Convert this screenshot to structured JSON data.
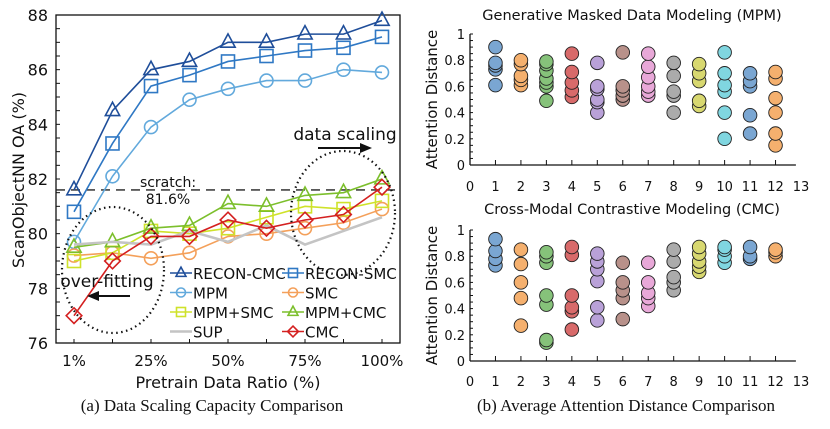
{
  "chart_data": [
    {
      "type": "line",
      "caption": "(a) Data Scaling Capacity Comparison",
      "xlabel": "Pretrain Data Ratio (%)",
      "ylabel": "ScanObjectNN OA (%)",
      "x": [
        "1%",
        "12.5%",
        "25%",
        "37.5%",
        "50%",
        "62.5%",
        "75%",
        "87.5%",
        "100%"
      ],
      "xtick_labels": [
        "1%",
        "25%",
        "50%",
        "75%",
        "100%"
      ],
      "ylim": [
        76,
        88
      ],
      "yticks": [
        76,
        78,
        80,
        82,
        84,
        86,
        88
      ],
      "grid": false,
      "legend_position": "bottom-right",
      "reference_line": {
        "value": 81.6,
        "label_1": "scratch:",
        "label_2": "81.6%"
      },
      "annotations": {
        "data_scaling": "data scaling",
        "over_fitting": "over-fitting"
      },
      "series": [
        {
          "name": "RECON-CMC",
          "marker": "triangle",
          "color": "#1f4e9a",
          "values": [
            81.6,
            84.5,
            86.0,
            86.3,
            87.0,
            87.0,
            87.3,
            87.3,
            87.8
          ]
        },
        {
          "name": "RECON-SMC",
          "marker": "square",
          "color": "#2f78c4",
          "values": [
            80.8,
            83.3,
            85.4,
            85.8,
            86.3,
            86.5,
            86.7,
            86.8,
            87.2
          ]
        },
        {
          "name": "MPM",
          "marker": "circle",
          "color": "#62a9dc",
          "values": [
            79.7,
            82.1,
            83.9,
            84.9,
            85.3,
            85.6,
            85.6,
            86.0,
            85.9
          ]
        },
        {
          "name": "SMC",
          "marker": "circle",
          "color": "#f4a05a",
          "values": [
            79.2,
            79.3,
            79.1,
            79.3,
            79.9,
            80.0,
            80.2,
            80.4,
            80.9
          ]
        },
        {
          "name": "MPM+SMC",
          "marker": "square",
          "color": "#cfe22a",
          "values": [
            79.0,
            79.3,
            80.1,
            80.0,
            80.2,
            80.6,
            81.0,
            80.9,
            81.2
          ]
        },
        {
          "name": "MPM+CMC",
          "marker": "triangle",
          "color": "#7cbf2c",
          "values": [
            79.5,
            79.7,
            80.2,
            80.3,
            81.1,
            81.0,
            81.4,
            81.5,
            82.0
          ]
        },
        {
          "name": "SUP",
          "marker": "none",
          "color": "#c4c4c4",
          "values": [
            79.6,
            79.7,
            79.6,
            80.1,
            79.7,
            80.3,
            79.6,
            80.1,
            80.6
          ]
        },
        {
          "name": "CMC",
          "marker": "diamond",
          "color": "#d42020",
          "values": [
            77.0,
            79.0,
            79.9,
            79.9,
            80.5,
            80.2,
            80.5,
            80.7,
            81.7
          ]
        }
      ]
    },
    {
      "type": "scatter",
      "title": "Generative Masked Data Modeling (MPM)",
      "ylabel": "Attention Distance",
      "xlim": [
        0,
        13
      ],
      "ylim": [
        0,
        1
      ],
      "xticks": [
        0,
        1,
        2,
        3,
        4,
        5,
        6,
        7,
        8,
        9,
        10,
        11,
        12,
        13
      ],
      "yticks": [
        0,
        0.2,
        0.4,
        0.6,
        0.8,
        1
      ],
      "colors": [
        "#7aa6d2",
        "#f5b06e",
        "#86c27a",
        "#d86a6a",
        "#b9a1d8",
        "#b8918a",
        "#e8a8d8",
        "#ababab",
        "#d8d870",
        "#80d6e0",
        "#7aa6d2",
        "#f5b06e"
      ],
      "points": [
        [
          0.9,
          0.78,
          0.76,
          0.73,
          0.61
        ],
        [
          0.8,
          0.77,
          0.68,
          0.65,
          0.61
        ],
        [
          0.79,
          0.77,
          0.72,
          0.66,
          0.63,
          0.6,
          0.49
        ],
        [
          0.85,
          0.71,
          0.63,
          0.57,
          0.52
        ],
        [
          0.78,
          0.6,
          0.58,
          0.5,
          0.48,
          0.4
        ],
        [
          0.86,
          0.6,
          0.57,
          0.53,
          0.5
        ],
        [
          0.85,
          0.75,
          0.67,
          0.6,
          0.56,
          0.53
        ],
        [
          0.78,
          0.68,
          0.56,
          0.53,
          0.4
        ],
        [
          0.77,
          0.7,
          0.64,
          0.49,
          0.45
        ],
        [
          0.86,
          0.7,
          0.61,
          0.56,
          0.4,
          0.2
        ],
        [
          0.7,
          0.64,
          0.6,
          0.38,
          0.24
        ],
        [
          0.71,
          0.66,
          0.51,
          0.4,
          0.24,
          0.15
        ]
      ]
    },
    {
      "type": "scatter",
      "title": "Cross-Modal Contrastive Modeling (CMC)",
      "ylabel": "Attention Distance",
      "caption": "(b) Average Attention Distance Comparison",
      "xlim": [
        0,
        13
      ],
      "ylim": [
        0,
        1
      ],
      "xticks": [
        0,
        1,
        2,
        3,
        4,
        5,
        6,
        7,
        8,
        9,
        10,
        11,
        12,
        13
      ],
      "yticks": [
        0,
        0.2,
        0.4,
        0.6,
        0.8,
        1
      ],
      "colors": [
        "#7aa6d2",
        "#f5b06e",
        "#86c27a",
        "#d86a6a",
        "#b9a1d8",
        "#b8918a",
        "#e8a8d8",
        "#ababab",
        "#d8d870",
        "#80d6e0",
        "#7aa6d2",
        "#f5b06e"
      ],
      "points": [
        [
          0.93,
          0.84,
          0.78,
          0.73
        ],
        [
          0.85,
          0.74,
          0.6,
          0.48,
          0.27
        ],
        [
          0.83,
          0.8,
          0.75,
          0.5,
          0.43,
          0.16,
          0.14
        ],
        [
          0.87,
          0.81,
          0.5,
          0.41,
          0.38,
          0.24
        ],
        [
          0.82,
          0.76,
          0.7,
          0.61,
          0.41,
          0.31
        ],
        [
          0.75,
          0.6,
          0.54,
          0.48,
          0.32
        ],
        [
          0.75,
          0.6,
          0.52,
          0.48,
          0.42
        ],
        [
          0.85,
          0.76,
          0.64,
          0.6,
          0.54
        ],
        [
          0.87,
          0.82,
          0.76,
          0.72,
          0.68
        ],
        [
          0.87,
          0.85,
          0.8,
          0.75
        ],
        [
          0.87,
          0.8,
          0.78
        ],
        [
          0.85,
          0.83,
          0.8
        ]
      ]
    }
  ]
}
